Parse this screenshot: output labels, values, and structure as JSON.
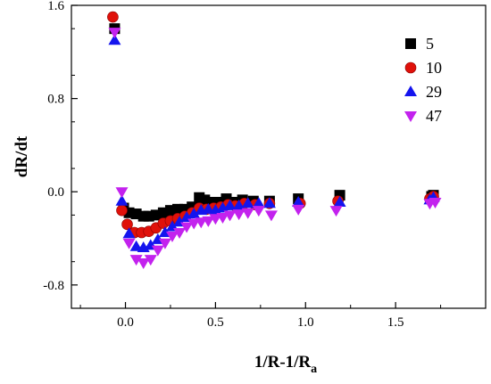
{
  "chart_data": {
    "type": "scatter",
    "xlabel": "1/R-1/R",
    "xlabel_sub": "a",
    "ylabel": "dR/dt",
    "xlim": [
      -0.3,
      2.0
    ],
    "ylim": [
      -1.0,
      1.6
    ],
    "xticks": [
      0.0,
      0.5,
      1.0,
      1.5
    ],
    "xtick_labels": [
      "0.0",
      "0.5",
      "1.0",
      "1.5"
    ],
    "yticks": [
      1.6,
      0.8,
      0.0,
      -0.8
    ],
    "ytick_labels": [
      "1.6",
      "0.8",
      "0.0",
      "-0.8"
    ],
    "grid": false,
    "legend_position": "top-right",
    "series": [
      {
        "name": "5",
        "marker": "square",
        "color": "#000000",
        "x": [
          -0.06,
          -0.01,
          0.02,
          0.06,
          0.1,
          0.13,
          0.17,
          0.21,
          0.25,
          0.29,
          0.33,
          0.37,
          0.41,
          0.44,
          0.48,
          0.52,
          0.56,
          0.6,
          0.65,
          0.71,
          0.8,
          0.96,
          1.19,
          1.7,
          1.71
        ],
        "y": [
          1.4,
          -0.14,
          -0.18,
          -0.19,
          -0.21,
          -0.21,
          -0.2,
          -0.18,
          -0.16,
          -0.15,
          -0.15,
          -0.13,
          -0.05,
          -0.07,
          -0.09,
          -0.09,
          -0.06,
          -0.09,
          -0.07,
          -0.08,
          -0.08,
          -0.06,
          -0.03,
          -0.04,
          -0.03
        ]
      },
      {
        "name": "10",
        "marker": "circle",
        "color": "#e0110a",
        "x": [
          -0.07,
          -0.02,
          0.01,
          0.05,
          0.09,
          0.13,
          0.17,
          0.21,
          0.25,
          0.29,
          0.33,
          0.37,
          0.41,
          0.45,
          0.49,
          0.53,
          0.57,
          0.61,
          0.66,
          0.72,
          0.8,
          0.97,
          1.18,
          1.69,
          1.71
        ],
        "y": [
          1.5,
          -0.16,
          -0.28,
          -0.35,
          -0.35,
          -0.34,
          -0.31,
          -0.27,
          -0.25,
          -0.23,
          -0.21,
          -0.18,
          -0.14,
          -0.15,
          -0.14,
          -0.13,
          -0.11,
          -0.12,
          -0.1,
          -0.11,
          -0.1,
          -0.1,
          -0.08,
          -0.06,
          -0.04
        ]
      },
      {
        "name": "29",
        "marker": "triangle-up",
        "color": "#1414ee",
        "x": [
          -0.06,
          -0.02,
          0.02,
          0.06,
          0.1,
          0.14,
          0.18,
          0.22,
          0.26,
          0.3,
          0.34,
          0.38,
          0.42,
          0.46,
          0.5,
          0.54,
          0.58,
          0.63,
          0.68,
          0.74,
          0.8,
          0.96,
          1.19,
          1.69,
          1.71
        ],
        "y": [
          1.3,
          -0.08,
          -0.36,
          -0.47,
          -0.48,
          -0.46,
          -0.41,
          -0.35,
          -0.3,
          -0.26,
          -0.22,
          -0.19,
          -0.16,
          -0.15,
          -0.16,
          -0.14,
          -0.12,
          -0.12,
          -0.1,
          -0.1,
          -0.1,
          -0.09,
          -0.09,
          -0.07,
          -0.05
        ]
      },
      {
        "name": "47",
        "marker": "triangle-down",
        "color": "#c322ee",
        "x": [
          -0.06,
          -0.02,
          0.02,
          0.06,
          0.1,
          0.14,
          0.18,
          0.22,
          0.26,
          0.3,
          0.34,
          0.38,
          0.42,
          0.46,
          0.5,
          0.54,
          0.58,
          0.63,
          0.68,
          0.74,
          0.81,
          0.96,
          1.17,
          1.69,
          1.72
        ],
        "y": [
          1.37,
          0.0,
          -0.44,
          -0.58,
          -0.61,
          -0.58,
          -0.5,
          -0.44,
          -0.38,
          -0.35,
          -0.3,
          -0.27,
          -0.26,
          -0.25,
          -0.23,
          -0.22,
          -0.2,
          -0.19,
          -0.18,
          -0.16,
          -0.2,
          -0.15,
          -0.16,
          -0.1,
          -0.09
        ]
      }
    ]
  }
}
